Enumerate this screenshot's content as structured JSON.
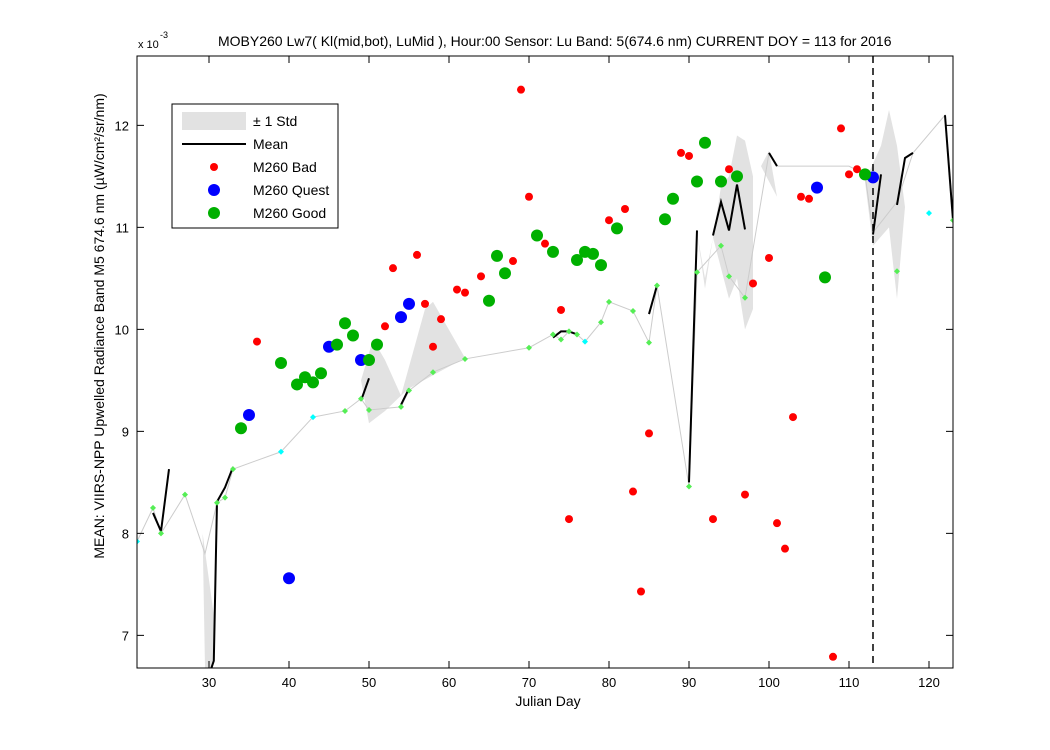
{
  "header": {
    "title": "MOBY260   Lw7( Kl(mid,bot), LuMid ),   Hour:00 Sensor: Lu Band: 5(674.6 nm)   CURRENT DOY = 113 for 2016",
    "exponent_base": "x 10",
    "exponent_power": "-3"
  },
  "chart_data": {
    "type": "scatter",
    "xlabel": "Julian Day",
    "ylabel": "MEAN: VIIRS-NPP Upwelled Radiance Band M5 674.6 nm (µW/cm²/sr/nm)",
    "xlim": [
      21,
      123
    ],
    "ylim": [
      6.68,
      12.68
    ],
    "y_scale_note": "x 10^-3",
    "xticks": [
      30,
      40,
      50,
      60,
      70,
      80,
      90,
      100,
      110,
      120
    ],
    "yticks": [
      7,
      8,
      9,
      10,
      11,
      12
    ],
    "current_doy": 113,
    "legend": {
      "position": "top-left",
      "entries": [
        {
          "key": "std",
          "label": "± 1 Std"
        },
        {
          "key": "mean",
          "label": "Mean"
        },
        {
          "key": "bad",
          "label": "M260 Bad"
        },
        {
          "key": "quest",
          "label": "M260 Quest"
        },
        {
          "key": "good",
          "label": "M260 Good"
        }
      ]
    },
    "colors": {
      "bad": "#ff0000",
      "quest": "#0000ff",
      "good": "#00b000",
      "other": "#00ffff",
      "small_good": "#55ee55",
      "std_band": "#e2e2e2",
      "mean": "#000000"
    },
    "thin_line": [
      [
        21,
        7.92
      ],
      [
        23,
        8.25
      ],
      [
        24,
        8.0
      ],
      [
        27,
        8.38
      ],
      [
        29.5,
        7.8
      ],
      [
        31,
        8.3
      ],
      [
        32,
        8.35
      ],
      [
        33,
        8.63
      ],
      [
        39,
        8.8
      ],
      [
        43,
        9.14
      ],
      [
        47,
        9.2
      ],
      [
        49,
        9.32
      ],
      [
        50,
        9.21
      ],
      [
        54,
        9.24
      ],
      [
        55,
        9.4
      ],
      [
        58,
        9.58
      ],
      [
        62,
        9.71
      ],
      [
        70,
        9.82
      ],
      [
        73,
        9.95
      ],
      [
        74,
        9.9
      ],
      [
        75,
        9.98
      ],
      [
        76,
        9.95
      ],
      [
        77,
        9.88
      ],
      [
        79,
        10.07
      ],
      [
        80,
        10.27
      ],
      [
        83,
        10.18
      ],
      [
        85,
        9.87
      ],
      [
        86,
        10.43
      ],
      [
        90,
        8.46
      ],
      [
        91,
        10.56
      ],
      [
        94,
        10.82
      ],
      [
        95,
        10.52
      ],
      [
        97,
        10.31
      ],
      [
        100,
        11.73
      ],
      [
        101,
        11.6
      ],
      [
        110,
        11.6
      ],
      [
        112,
        11.52
      ],
      [
        113,
        10.95
      ],
      [
        116,
        11.25
      ],
      [
        118,
        11.73
      ],
      [
        122,
        12.1
      ],
      [
        123,
        11.07
      ]
    ],
    "std_bands": [
      [
        [
          29.2,
          8.0
        ],
        [
          29.5,
          6.68
        ],
        [
          30.5,
          6.68
        ],
        [
          30.6,
          7.2
        ]
      ],
      [
        [
          49,
          9.5
        ],
        [
          50.5,
          9.9
        ],
        [
          52,
          9.7
        ],
        [
          54,
          9.35
        ],
        [
          52,
          9.2
        ],
        [
          50,
          9.08
        ]
      ],
      [
        [
          54,
          9.35
        ],
        [
          57,
          10.2
        ],
        [
          58,
          10.27
        ],
        [
          62,
          9.72
        ],
        [
          58,
          9.55
        ],
        [
          55,
          9.42
        ]
      ],
      [
        [
          91,
          10.95
        ],
        [
          92,
          10.4
        ],
        [
          93,
          10.9
        ],
        [
          94,
          11.4
        ],
        [
          95,
          11.5
        ],
        [
          96,
          11.9
        ],
        [
          97,
          11.85
        ],
        [
          98,
          11.5
        ],
        [
          98,
          10.2
        ],
        [
          97,
          10.0
        ],
        [
          96,
          10.5
        ],
        [
          95,
          10.3
        ],
        [
          94,
          10.6
        ],
        [
          93,
          10.9
        ],
        [
          92,
          10.5
        ]
      ],
      [
        [
          100,
          11.75
        ],
        [
          101,
          11.3
        ],
        [
          99,
          11.6
        ]
      ],
      [
        [
          112,
          11.45
        ],
        [
          114,
          11.8
        ],
        [
          115,
          12.15
        ],
        [
          116,
          11.8
        ],
        [
          117,
          11.2
        ],
        [
          116,
          10.3
        ],
        [
          115,
          11.0
        ],
        [
          113,
          10.82
        ]
      ]
    ],
    "mean_segments": [
      [
        [
          23,
          8.2
        ],
        [
          24,
          8.02
        ],
        [
          25,
          8.63
        ]
      ],
      [
        [
          30.3,
          6.68
        ],
        [
          30.6,
          6.75
        ],
        [
          31,
          8.31
        ],
        [
          32,
          8.45
        ],
        [
          33,
          8.65
        ]
      ],
      [
        [
          49,
          9.3
        ],
        [
          50,
          9.52
        ]
      ],
      [
        [
          54,
          9.26
        ],
        [
          55,
          9.42
        ]
      ],
      [
        [
          63,
          9.98
        ]
      ],
      [
        [
          73,
          9.92
        ],
        [
          74,
          9.98
        ],
        [
          75,
          9.98
        ],
        [
          76,
          9.95
        ]
      ],
      [
        [
          85,
          10.15
        ],
        [
          86,
          10.43
        ]
      ],
      [
        [
          90,
          8.5
        ],
        [
          91,
          10.97
        ]
      ],
      [
        [
          93,
          10.92
        ],
        [
          94,
          11.25
        ],
        [
          95,
          10.97
        ],
        [
          96,
          11.42
        ],
        [
          97,
          10.98
        ]
      ],
      [
        [
          100,
          11.73
        ],
        [
          101,
          11.6
        ]
      ],
      [
        [
          113,
          10.93
        ],
        [
          114,
          11.52
        ]
      ],
      [
        [
          116,
          11.22
        ],
        [
          117,
          11.68
        ],
        [
          118,
          11.73
        ]
      ],
      [
        [
          122,
          12.1
        ],
        [
          123,
          11.07
        ]
      ]
    ],
    "series": [
      {
        "name": "M260 Bad",
        "key": "bad",
        "points": [
          [
            36,
            9.88
          ],
          [
            52,
            10.03
          ],
          [
            53,
            10.6
          ],
          [
            56,
            10.73
          ],
          [
            57,
            10.25
          ],
          [
            58,
            9.83
          ],
          [
            59,
            10.1
          ],
          [
            61,
            10.39
          ],
          [
            62,
            10.36
          ],
          [
            64,
            10.52
          ],
          [
            68,
            10.67
          ],
          [
            69,
            12.35
          ],
          [
            70,
            11.3
          ],
          [
            72,
            10.84
          ],
          [
            74,
            10.19
          ],
          [
            75,
            8.14
          ],
          [
            80,
            11.07
          ],
          [
            82,
            11.18
          ],
          [
            83,
            8.41
          ],
          [
            84,
            7.43
          ],
          [
            85,
            8.98
          ],
          [
            89,
            11.73
          ],
          [
            90,
            11.7
          ],
          [
            93,
            8.14
          ],
          [
            95,
            11.57
          ],
          [
            97,
            8.38
          ],
          [
            98,
            10.45
          ],
          [
            100,
            10.7
          ],
          [
            101,
            8.1
          ],
          [
            102,
            7.85
          ],
          [
            103,
            9.14
          ],
          [
            104,
            11.3
          ],
          [
            105,
            11.28
          ],
          [
            108,
            6.79
          ],
          [
            109,
            11.97
          ],
          [
            110,
            11.52
          ],
          [
            111,
            11.57
          ]
        ]
      },
      {
        "name": "M260 Quest",
        "key": "quest",
        "points": [
          [
            35,
            9.16
          ],
          [
            40,
            7.56
          ],
          [
            45,
            9.83
          ],
          [
            49,
            9.7
          ],
          [
            54,
            10.12
          ],
          [
            55,
            10.25
          ],
          [
            106,
            11.39
          ],
          [
            113,
            11.49
          ]
        ]
      },
      {
        "name": "M260 Good",
        "key": "good",
        "points": [
          [
            34,
            9.03
          ],
          [
            39,
            9.67
          ],
          [
            41,
            9.46
          ],
          [
            42,
            9.53
          ],
          [
            43,
            9.48
          ],
          [
            44,
            9.57
          ],
          [
            46,
            9.85
          ],
          [
            47,
            10.06
          ],
          [
            48,
            9.94
          ],
          [
            50,
            9.7
          ],
          [
            51,
            9.85
          ],
          [
            65,
            10.28
          ],
          [
            66,
            10.72
          ],
          [
            67,
            10.55
          ],
          [
            71,
            10.92
          ],
          [
            73,
            10.76
          ],
          [
            76,
            10.68
          ],
          [
            77,
            10.76
          ],
          [
            78,
            10.74
          ],
          [
            79,
            10.63
          ],
          [
            81,
            10.99
          ],
          [
            87,
            11.08
          ],
          [
            88,
            11.28
          ],
          [
            91,
            11.45
          ],
          [
            92,
            11.83
          ],
          [
            94,
            11.45
          ],
          [
            96,
            11.5
          ],
          [
            107,
            10.51
          ],
          [
            112,
            11.52
          ]
        ]
      },
      {
        "key": "small_good",
        "points": [
          [
            23,
            8.25
          ],
          [
            24,
            8.0
          ],
          [
            27,
            8.38
          ],
          [
            31,
            8.3
          ],
          [
            32,
            8.35
          ],
          [
            33,
            8.63
          ],
          [
            47,
            9.2
          ],
          [
            49,
            9.32
          ],
          [
            50,
            9.21
          ],
          [
            54,
            9.24
          ],
          [
            55,
            9.4
          ],
          [
            58,
            9.58
          ],
          [
            62,
            9.71
          ],
          [
            70,
            9.82
          ],
          [
            73,
            9.95
          ],
          [
            74,
            9.9
          ],
          [
            75,
            9.98
          ],
          [
            76,
            9.95
          ],
          [
            79,
            10.07
          ],
          [
            80,
            10.27
          ],
          [
            83,
            10.18
          ],
          [
            85,
            9.87
          ],
          [
            86,
            10.43
          ],
          [
            90,
            8.46
          ],
          [
            91,
            10.56
          ],
          [
            94,
            10.82
          ],
          [
            95,
            10.52
          ],
          [
            97,
            10.31
          ],
          [
            116,
            10.57
          ],
          [
            123,
            11.07
          ]
        ]
      },
      {
        "key": "other",
        "points": [
          [
            21,
            7.92
          ],
          [
            39,
            8.8
          ],
          [
            43,
            9.14
          ],
          [
            77,
            9.88
          ],
          [
            120,
            11.14
          ]
        ]
      }
    ]
  }
}
